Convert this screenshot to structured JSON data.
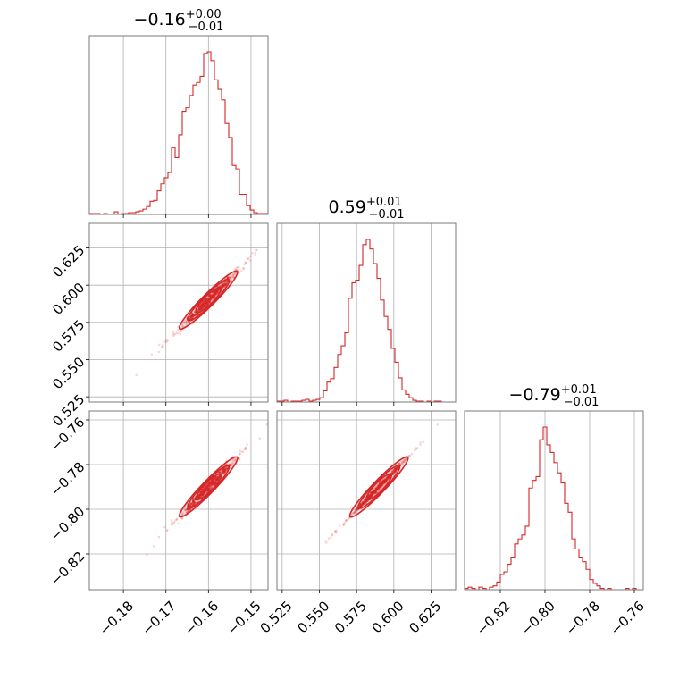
{
  "chart_data": {
    "type": "corner",
    "color": "#d62728",
    "grid": true,
    "parameters": [
      {
        "title_value": "−0.16",
        "title_plus": "+0.00",
        "title_minus": "−0.01",
        "median": -0.16,
        "range": [
          -0.188,
          -0.146
        ],
        "ticks": [
          -0.18,
          -0.17,
          -0.16,
          -0.15
        ],
        "tick_labels": [
          "−0.18",
          "−0.17",
          "−0.16",
          "−0.15"
        ],
        "hist": {
          "start": -0.188,
          "width": 0.00084,
          "counts": [
            1,
            1,
            1,
            0,
            1,
            0,
            0,
            3,
            0,
            1,
            1,
            2,
            2,
            3,
            4,
            6,
            9,
            15,
            16,
            27,
            35,
            42,
            48,
            76,
            65,
            91,
            118,
            122,
            136,
            148,
            151,
            158,
            184,
            186,
            176,
            154,
            143,
            131,
            104,
            88,
            56,
            52,
            23,
            23,
            10,
            5,
            2,
            1,
            1,
            1
          ]
        }
      },
      {
        "title_value": "0.59",
        "title_plus": "+0.01",
        "title_minus": "−0.01",
        "median": 0.59,
        "range": [
          0.5215,
          0.6415
        ],
        "ticks": [
          0.525,
          0.55,
          0.575,
          0.6,
          0.625
        ],
        "tick_labels": [
          "0.525",
          "0.550",
          "0.575",
          "0.600",
          "0.625"
        ],
        "hist": {
          "start": 0.5215,
          "width": 0.0024,
          "counts": [
            1,
            1,
            2,
            0,
            1,
            1,
            1,
            2,
            3,
            1,
            2,
            3,
            5,
            13,
            23,
            27,
            40,
            55,
            65,
            80,
            120,
            138,
            141,
            158,
            182,
            188,
            177,
            160,
            143,
            118,
            99,
            84,
            62,
            46,
            28,
            14,
            9,
            5,
            2,
            1,
            1,
            0,
            1,
            0,
            1,
            1,
            0,
            0,
            0,
            0
          ]
        }
      },
      {
        "title_value": "−0.79",
        "title_plus": "+0.01",
        "title_minus": "−0.01",
        "median": -0.79,
        "range": [
          -0.836,
          -0.756
        ],
        "ticks": [
          -0.82,
          -0.8,
          -0.78,
          -0.76
        ],
        "tick_labels": [
          "−0.82",
          "−0.80",
          "−0.78",
          "−0.76"
        ],
        "hist": {
          "start": -0.836,
          "width": 0.0016,
          "counts": [
            1,
            2,
            1,
            0,
            2,
            1,
            0,
            2,
            3,
            6,
            12,
            14,
            20,
            25,
            36,
            40,
            43,
            50,
            80,
            86,
            89,
            118,
            128,
            114,
            108,
            100,
            92,
            84,
            68,
            61,
            40,
            32,
            25,
            22,
            16,
            8,
            5,
            3,
            1,
            0,
            1,
            0,
            0,
            0,
            0,
            1,
            0,
            1,
            0,
            0
          ]
        }
      }
    ],
    "scatter_pairs": [
      {
        "x_param": 0,
        "y_param": 1,
        "slope": 2.85,
        "thickness": 0.0016
      },
      {
        "x_param": 0,
        "y_param": 2,
        "slope": 1.97,
        "thickness": 0.0012
      },
      {
        "x_param": 1,
        "y_param": 2,
        "slope": 0.69,
        "thickness": 0.0005
      }
    ]
  }
}
